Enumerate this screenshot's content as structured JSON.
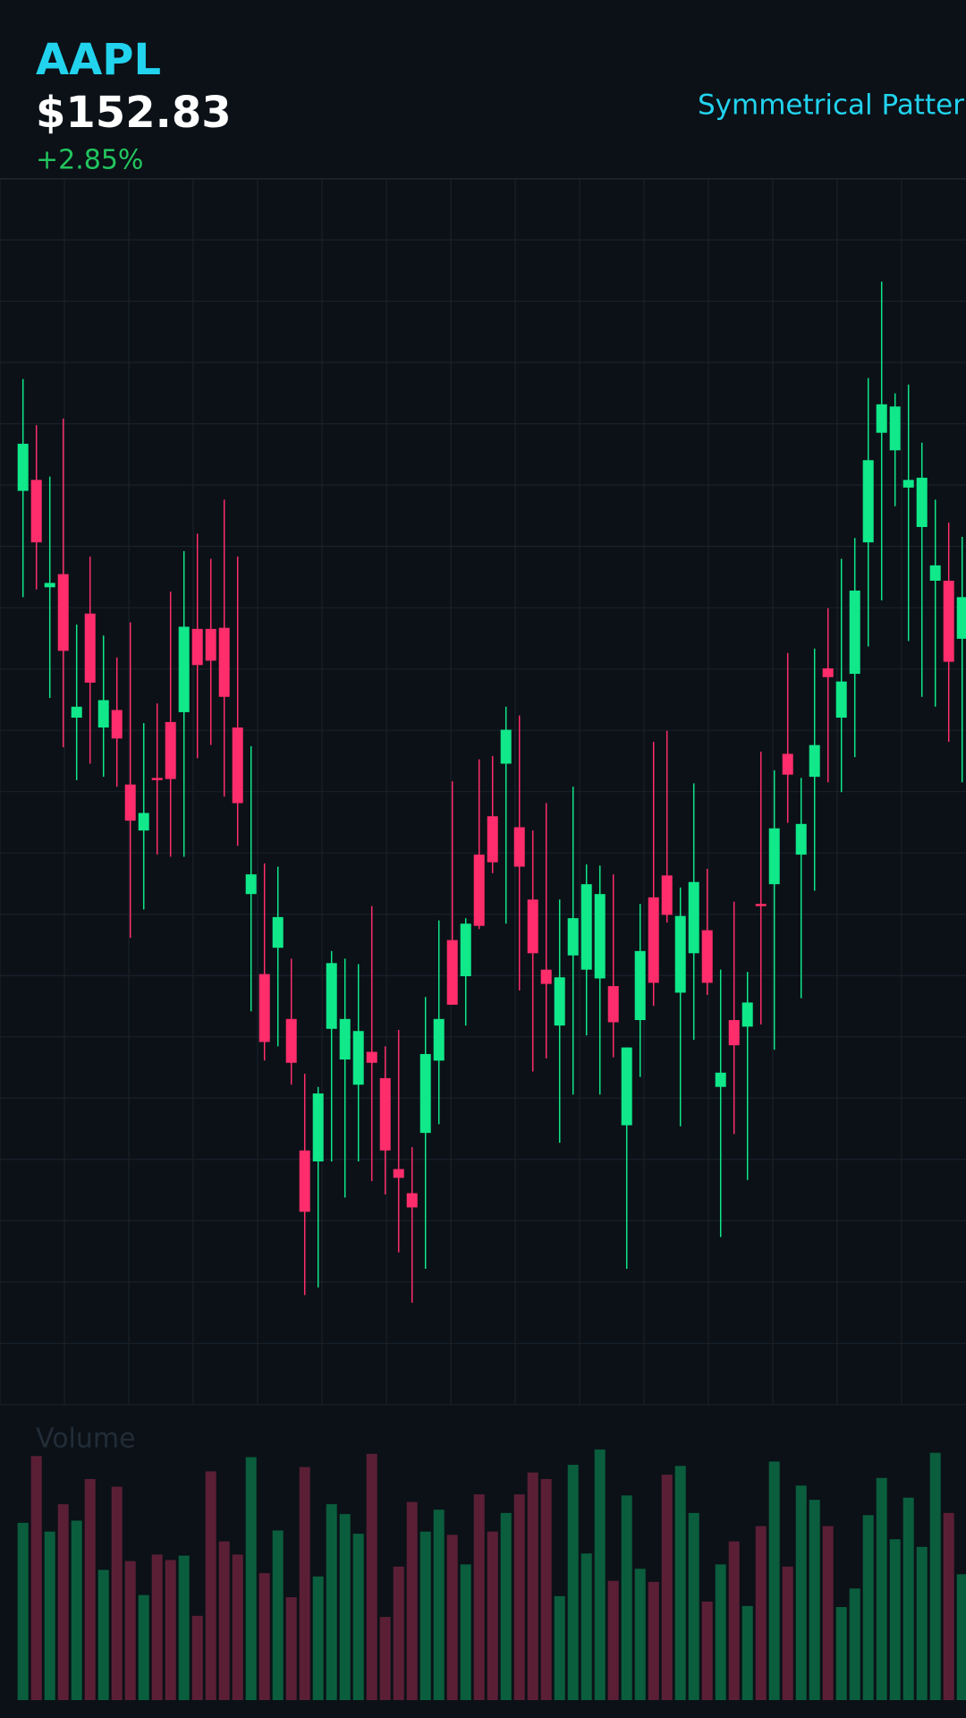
{
  "chart_data": {
    "type": "candlestick",
    "title": "AAPL",
    "price": "$152.83",
    "change": "+2.85%",
    "annotation": "Symmetrical Pattern",
    "up_color": "#10e88a",
    "down_color": "#ff2d6b",
    "grid": true,
    "ylim": [
      0,
      1119
    ],
    "open": [
      834,
      844,
      746,
      758,
      627,
      722,
      618,
      634,
      566,
      524,
      572,
      623,
      632,
      708,
      708,
      709,
      618,
      466,
      393,
      417,
      352,
      232,
      222,
      343,
      315,
      292,
      322,
      298,
      215,
      193,
      248,
      314,
      424,
      391,
      502,
      537,
      585,
      527,
      461,
      397,
      346,
      410,
      397,
      389,
      382,
      255,
      351,
      463,
      483,
      376,
      412,
      433,
      290,
      351,
      345,
      457,
      475,
      594,
      502,
      573,
      672,
      627,
      667,
      787,
      887,
      871,
      837,
      801,
      752,
      752,
      699
    ],
    "high": [
      936,
      894,
      847,
      900,
      712,
      774,
      702,
      682,
      714,
      622,
      640,
      742,
      779,
      795,
      772,
      826,
      774,
      601,
      494,
      491,
      407,
      302,
      290,
      414,
      407,
      402,
      455,
      327,
      342,
      235,
      372,
      442,
      569,
      444,
      589,
      592,
      637,
      629,
      524,
      549,
      461,
      564,
      493,
      492,
      484,
      326,
      457,
      605,
      615,
      472,
      567,
      489,
      397,
      459,
      395,
      596,
      579,
      686,
      572,
      690,
      727,
      772,
      791,
      937,
      1025,
      923,
      931,
      878,
      826,
      805,
      792
    ],
    "low": [
      737,
      744,
      645,
      600,
      570,
      585,
      573,
      564,
      426,
      452,
      502,
      500,
      500,
      590,
      602,
      555,
      510,
      359,
      314,
      327,
      292,
      100,
      107,
      222,
      189,
      222,
      204,
      192,
      139,
      93,
      124,
      256,
      365,
      346,
      434,
      485,
      439,
      378,
      304,
      316,
      239,
      283,
      337,
      283,
      317,
      124,
      299,
      364,
      440,
      254,
      333,
      374,
      153,
      247,
      205,
      347,
      324,
      531,
      371,
      469,
      568,
      559,
      591,
      692,
      734,
      820,
      697,
      646,
      637,
      605,
      568
    ],
    "close": [
      877,
      787,
      750,
      688,
      637,
      659,
      643,
      608,
      533,
      540,
      570,
      571,
      710,
      675,
      679,
      646,
      549,
      484,
      331,
      445,
      312,
      176,
      284,
      403,
      352,
      341,
      312,
      232,
      207,
      180,
      320,
      352,
      365,
      439,
      437,
      495,
      616,
      491,
      412,
      384,
      390,
      444,
      475,
      466,
      349,
      326,
      414,
      385,
      447,
      446,
      477,
      385,
      303,
      328,
      367,
      455,
      526,
      575,
      530,
      602,
      664,
      660,
      743,
      862,
      913,
      911,
      844,
      846,
      766,
      678,
      737
    ],
    "volume": {
      "name": "Volume",
      "up_color": "#0b5e3d",
      "down_color": "#5b1f35",
      "ylim": [
        0,
        252
      ],
      "values": [
        162,
        223,
        154,
        179,
        164,
        202,
        119,
        195,
        127,
        96,
        133,
        128,
        132,
        77,
        209,
        145,
        133,
        222,
        116,
        155,
        94,
        213,
        113,
        179,
        170,
        152,
        225,
        76,
        122,
        181,
        154,
        174,
        151,
        124,
        188,
        154,
        171,
        188,
        208,
        202,
        95,
        215,
        134,
        229,
        109,
        187,
        120,
        108,
        206,
        214,
        171,
        90,
        124,
        145,
        86,
        159,
        218,
        122,
        196,
        183,
        159,
        85,
        102,
        169,
        203,
        147,
        185,
        140,
        226,
        171,
        115
      ]
    }
  }
}
